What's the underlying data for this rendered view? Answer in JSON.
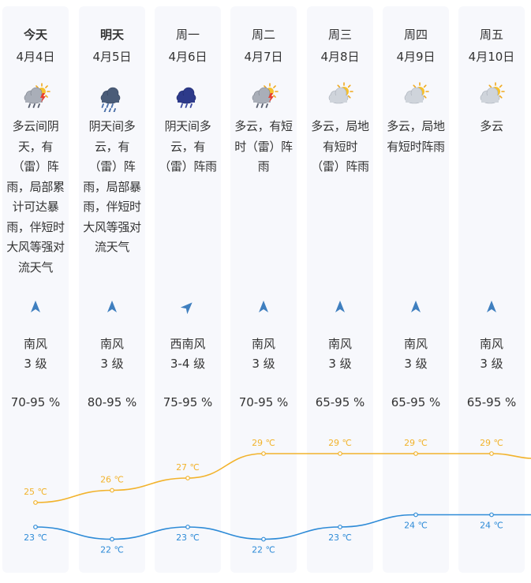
{
  "days": [
    {
      "name": "今天",
      "date": "4月4日",
      "icon": "cloudy-thunder-rain-icon",
      "desc": "多云间阴天，有（雷）阵雨，局部累计可达暴雨，伴短时大风等强对流天气",
      "wind_dir": "南风",
      "wind_level": "3 级",
      "wind_icon": "north-arrow-icon",
      "humidity": "70-95 %"
    },
    {
      "name": "明天",
      "date": "4月5日",
      "icon": "heavy-rain-icon",
      "desc": "阴天间多云，有（雷）阵雨，局部暴雨，伴短时大风等强对流天气",
      "wind_dir": "南风",
      "wind_level": "3 级",
      "wind_icon": "north-arrow-icon",
      "humidity": "80-95 %"
    },
    {
      "name": "周一",
      "date": "4月6日",
      "icon": "overcast-thunder-rain-icon",
      "desc": "阴天间多云，有（雷）阵雨",
      "wind_dir": "西南风",
      "wind_level": "3-4 级",
      "wind_icon": "northeast-arrow-icon",
      "humidity": "75-95 %"
    },
    {
      "name": "周二",
      "date": "4月7日",
      "icon": "cloudy-thunder-rain-icon",
      "desc": "多云，有短时（雷）阵雨",
      "wind_dir": "南风",
      "wind_level": "3 级",
      "wind_icon": "north-arrow-icon",
      "humidity": "70-95 %"
    },
    {
      "name": "周三",
      "date": "4月8日",
      "icon": "partly-cloudy-icon",
      "desc": "多云，局地有短时（雷）阵雨",
      "wind_dir": "南风",
      "wind_level": "3 级",
      "wind_icon": "north-arrow-icon",
      "humidity": "65-95 %"
    },
    {
      "name": "周四",
      "date": "4月9日",
      "icon": "partly-cloudy-icon",
      "desc": "多云，局地有短时阵雨",
      "wind_dir": "南风",
      "wind_level": "3 级",
      "wind_icon": "north-arrow-icon",
      "humidity": "65-95 %"
    },
    {
      "name": "周五",
      "date": "4月10日",
      "icon": "partly-cloudy-icon",
      "desc": "多云",
      "wind_dir": "南风",
      "wind_level": "3 级",
      "wind_icon": "north-arrow-icon",
      "humidity": "65-95 %"
    }
  ],
  "chart_data": {
    "type": "line",
    "x": [
      "4月4日",
      "4月5日",
      "4月6日",
      "4月7日",
      "4月8日",
      "4月9日",
      "4月10日"
    ],
    "series": [
      {
        "values": [
          25,
          26,
          27,
          29,
          29,
          29,
          29
        ],
        "labels": [
          "25 ℃",
          "26 ℃",
          "27 ℃",
          "29 ℃",
          "29 ℃",
          "29 ℃",
          "29 ℃"
        ],
        "color": "#f2b32c"
      },
      {
        "values": [
          23,
          22,
          23,
          22,
          23,
          24,
          24
        ],
        "labels": [
          "23 ℃",
          "22 ℃",
          "23 ℃",
          "22 ℃",
          "23 ℃",
          "24 ℃",
          "24 ℃"
        ],
        "color": "#2e8bd7"
      }
    ],
    "grid": false
  },
  "colors": {
    "high": "#f2b32c",
    "low": "#2e8bd7",
    "column_bg": "#f7f8fc",
    "arrow": "#3f7fbf"
  }
}
